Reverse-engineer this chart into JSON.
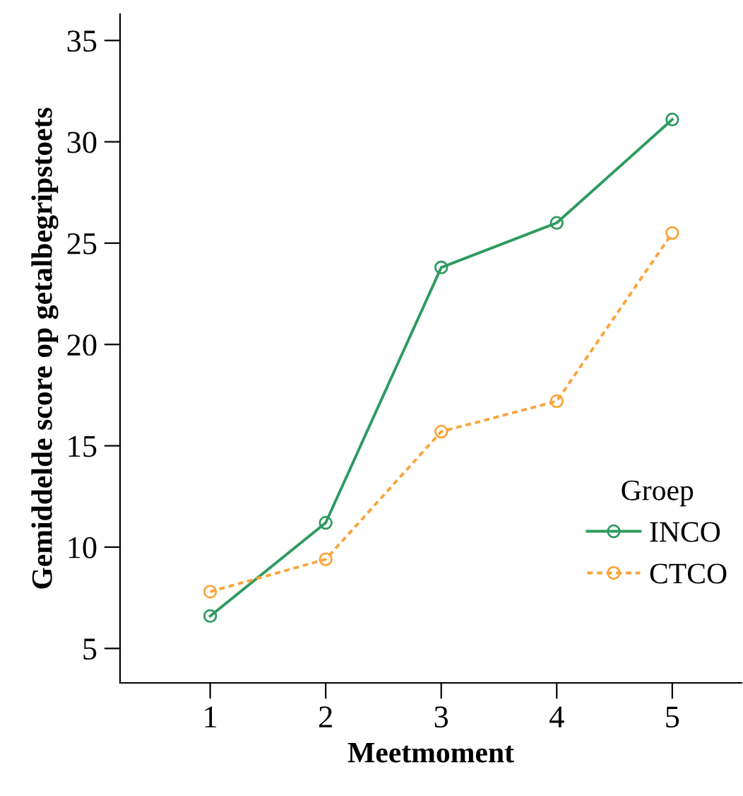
{
  "chart_data": {
    "type": "line",
    "xlabel": "Meetmoment",
    "ylabel": "Gemiddelde score op getalbegripstoets",
    "legend_title": "Groep",
    "categories": [
      "1",
      "2",
      "3",
      "4",
      "5"
    ],
    "series": [
      {
        "name": "INCO",
        "color": "#2e9b5f",
        "values": [
          6.6,
          11.2,
          23.8,
          26.0,
          31.1
        ],
        "line_style": "solid"
      },
      {
        "name": "CTCO",
        "color": "#f9a43a",
        "values": [
          7.8,
          9.4,
          15.7,
          17.2,
          25.5
        ],
        "line_style": "dashed"
      }
    ],
    "ylim": [
      3.3,
      36.3
    ],
    "yticks": [
      5,
      10,
      15,
      20,
      25,
      30,
      35
    ],
    "marker": "circle",
    "legend": "bottom right",
    "grid": false
  }
}
